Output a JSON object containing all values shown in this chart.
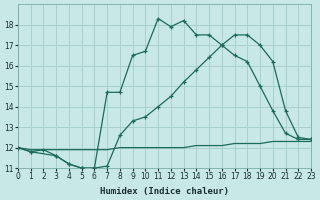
{
  "xlabel": "Humidex (Indice chaleur)",
  "bg_color": "#c8e8e5",
  "grid_color": "#a8d0cc",
  "line_color": "#1a6b5a",
  "xlim": [
    0,
    23
  ],
  "ylim": [
    11,
    19
  ],
  "yticks": [
    11,
    12,
    13,
    14,
    15,
    16,
    17,
    18
  ],
  "xticks": [
    0,
    1,
    2,
    3,
    4,
    5,
    6,
    7,
    8,
    9,
    10,
    11,
    12,
    13,
    14,
    15,
    16,
    17,
    18,
    19,
    20,
    21,
    22,
    23
  ],
  "curve_main_x": [
    0,
    1,
    3,
    4,
    5,
    6,
    7,
    8,
    9,
    10,
    11,
    12,
    13,
    14,
    15,
    16,
    17,
    18,
    19,
    20,
    21,
    22,
    23
  ],
  "curve_main_y": [
    12.0,
    11.8,
    11.6,
    11.2,
    11.0,
    11.0,
    14.7,
    14.7,
    16.5,
    16.7,
    18.3,
    17.9,
    18.2,
    17.5,
    17.5,
    17.0,
    16.5,
    16.2,
    15.0,
    13.8,
    12.7,
    12.4,
    12.4
  ],
  "curve_diag_x": [
    0,
    1,
    2,
    3,
    4,
    5,
    6,
    7,
    8,
    9,
    10,
    11,
    12,
    13,
    14,
    15,
    16,
    17,
    18,
    19,
    20,
    21,
    22,
    23
  ],
  "curve_diag_y": [
    12.0,
    11.8,
    11.9,
    11.6,
    11.2,
    11.0,
    11.0,
    11.1,
    12.6,
    13.3,
    13.5,
    14.0,
    14.5,
    15.2,
    15.8,
    16.4,
    17.0,
    17.5,
    17.5,
    17.0,
    16.2,
    13.8,
    12.5,
    12.4
  ],
  "curve_flat_x": [
    0,
    1,
    2,
    3,
    4,
    5,
    6,
    7,
    8,
    9,
    10,
    11,
    12,
    13,
    14,
    15,
    16,
    17,
    18,
    19,
    20,
    21,
    22,
    23
  ],
  "curve_flat_y": [
    12.0,
    11.9,
    11.9,
    11.9,
    11.9,
    11.9,
    11.9,
    11.9,
    12.0,
    12.0,
    12.0,
    12.0,
    12.0,
    12.0,
    12.1,
    12.1,
    12.1,
    12.2,
    12.2,
    12.2,
    12.3,
    12.3,
    12.3,
    12.3
  ]
}
